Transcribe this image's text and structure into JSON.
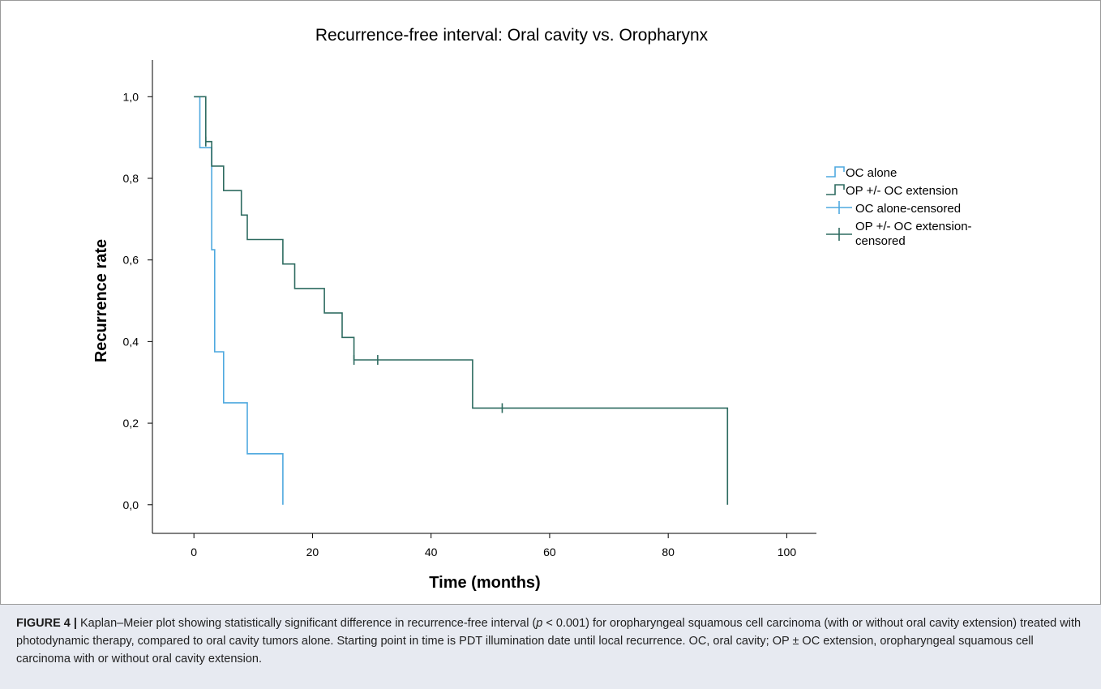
{
  "chart_data": {
    "type": "line",
    "subtype": "kaplan-meier",
    "title": "Recurrence-free interval: Oral cavity vs. Oropharynx",
    "xlabel": "Time (months)",
    "ylabel": "Recurrence rate",
    "xlim": [
      -7,
      105
    ],
    "ylim": [
      -0.07,
      1.09
    ],
    "xticks": [
      0,
      20,
      40,
      60,
      80,
      100
    ],
    "xtick_labels": [
      "0",
      "20",
      "40",
      "60",
      "80",
      "100"
    ],
    "yticks": [
      0,
      0.2,
      0.4,
      0.6,
      0.8,
      1.0
    ],
    "ytick_labels": [
      "0,0",
      "0,2",
      "0,4",
      "0,6",
      "0,8",
      "1,0"
    ],
    "grid": false,
    "legend_position": "right",
    "series": [
      {
        "name": "OC alone",
        "color": "#4fa9df",
        "steps": [
          [
            0,
            1.0
          ],
          [
            1,
            0.875
          ],
          [
            3,
            0.625
          ],
          [
            3.5,
            0.375
          ],
          [
            5,
            0.25
          ],
          [
            9,
            0.125
          ],
          [
            15,
            0.0
          ]
        ],
        "censored": []
      },
      {
        "name": "OP +/- OC extension",
        "color": "#2e6b60",
        "steps": [
          [
            0,
            1.0
          ],
          [
            2,
            0.89
          ],
          [
            3,
            0.83
          ],
          [
            5,
            0.77
          ],
          [
            8,
            0.71
          ],
          [
            9,
            0.65
          ],
          [
            15,
            0.59
          ],
          [
            17,
            0.53
          ],
          [
            22,
            0.47
          ],
          [
            25,
            0.41
          ],
          [
            27,
            0.355
          ],
          [
            47,
            0.237
          ],
          [
            90,
            0.0
          ]
        ],
        "censored": [
          [
            2,
            0.89
          ],
          [
            27,
            0.355
          ],
          [
            31,
            0.355
          ],
          [
            52,
            0.237
          ]
        ]
      }
    ],
    "legend": [
      {
        "label": "OC alone",
        "color": "#4fa9df",
        "symbol": "step"
      },
      {
        "label": "OP +/- OC extension",
        "color": "#2e6b60",
        "symbol": "step"
      },
      {
        "label": "OC alone-censored",
        "color": "#4fa9df",
        "symbol": "censor"
      },
      {
        "label": "OP +/- OC extension-censored",
        "line1": "OP +/- OC extension-",
        "line2": "censored",
        "color": "#2e6b60",
        "symbol": "censor"
      }
    ]
  },
  "caption": {
    "label": "FIGURE 4 |",
    "part1": " Kaplan–Meier plot showing statistically significant difference in recurrence-free interval (",
    "p_symbol": "p",
    "part2": " < 0.001) for oropharyngeal squamous cell carcinoma (with or without oral cavity extension) treated with photodynamic therapy, compared to oral cavity tumors alone. Starting point in time is PDT illumination date until local recurrence. OC, oral cavity; OP ± OC extension, oropharyngeal squamous cell carcinoma with or without oral cavity extension."
  }
}
